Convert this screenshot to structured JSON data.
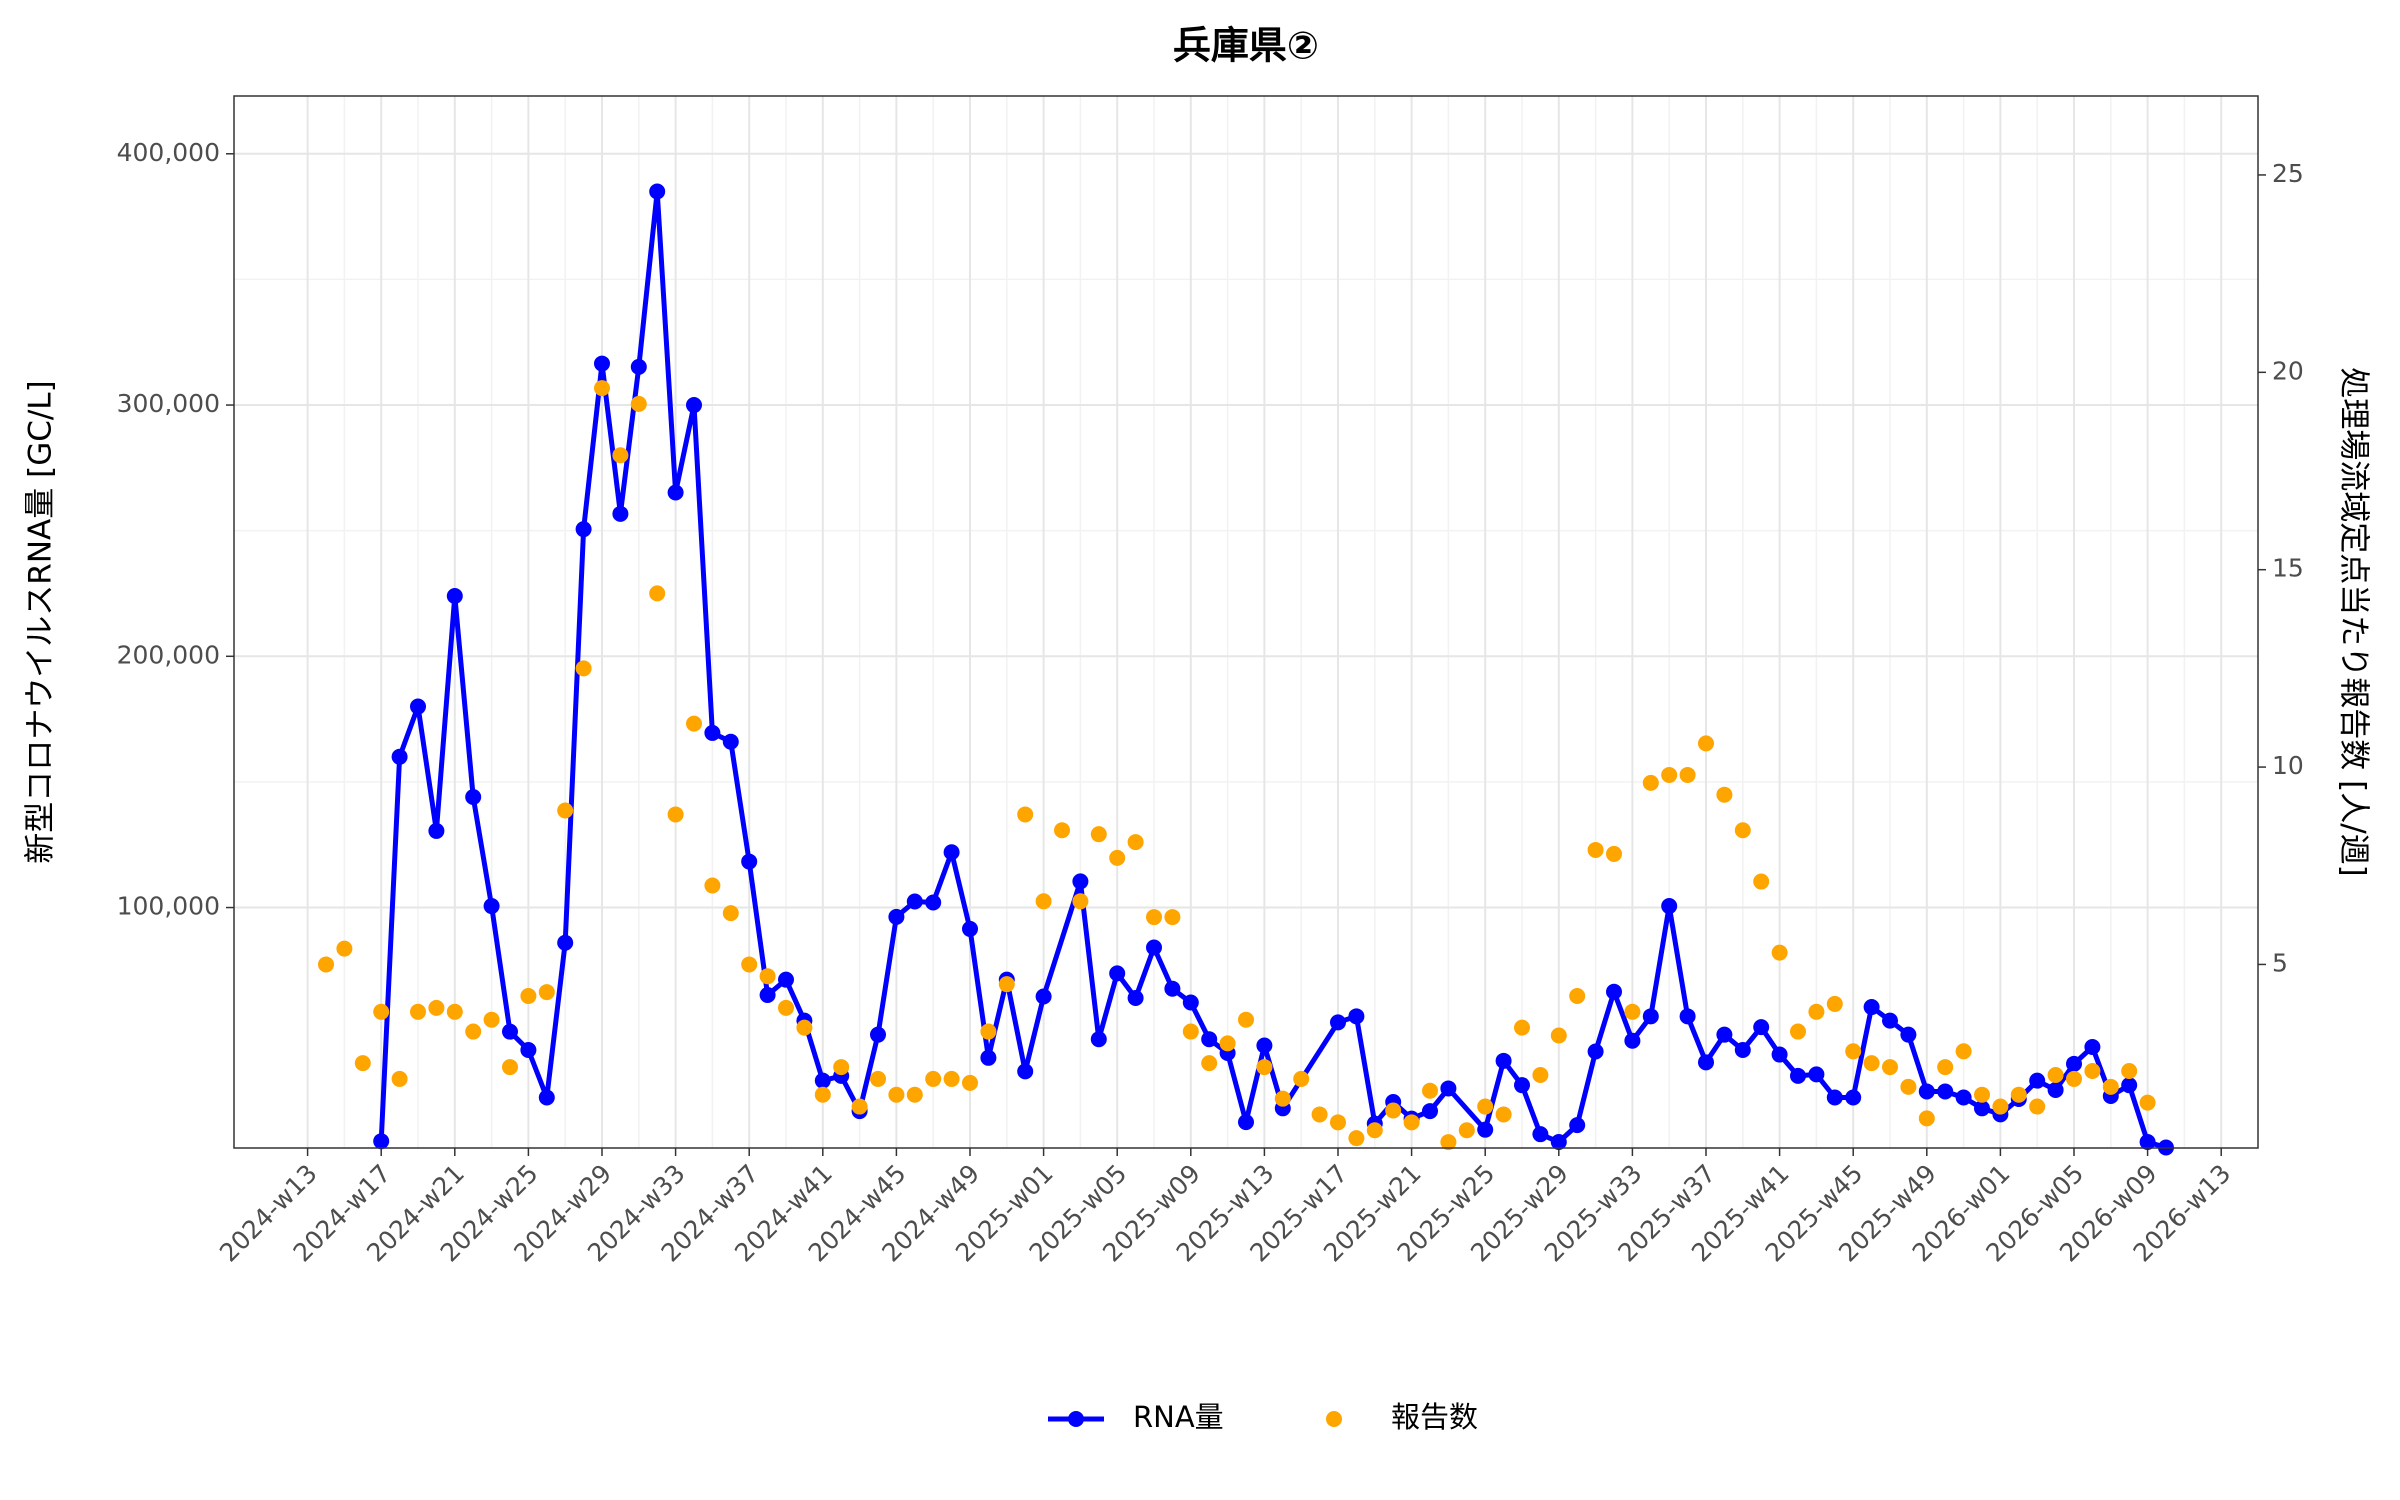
{
  "chart_data": {
    "type": "line",
    "title": "兵庫県②",
    "y_label": "新型コロナウイルスRNA量 [GC/L]",
    "y2_label": "処理場流域定点当たり報告数 [人/週]",
    "xlim": [
      "2024-w09",
      "2026-w15"
    ],
    "xticks": [
      "2024-w13",
      "2024-w17",
      "2024-w21",
      "2024-w25",
      "2024-w29",
      "2024-w33",
      "2024-w37",
      "2024-w41",
      "2024-w45",
      "2024-w49",
      "2025-w01",
      "2025-w05",
      "2025-w09",
      "2025-w13",
      "2025-w17",
      "2025-w21",
      "2025-w25",
      "2025-w29",
      "2025-w33",
      "2025-w37",
      "2025-w41",
      "2025-w45",
      "2025-w49",
      "2026-w01",
      "2026-w05",
      "2026-w09",
      "2026-w13"
    ],
    "ylim": [
      4300,
      423000
    ],
    "yticks": [
      {
        "value": 100000,
        "label": "100,000"
      },
      {
        "value": 200000,
        "label": "200,000"
      },
      {
        "value": 300000,
        "label": "300,000"
      },
      {
        "value": 400000,
        "label": "400,000"
      }
    ],
    "y2lim": [
      0.35,
      27
    ],
    "y2ticks": [
      5,
      10,
      15,
      20,
      25
    ],
    "grid": true,
    "legend_position": "bottom",
    "series": [
      {
        "name": "RNA量",
        "color": "#0000ff",
        "mode": "lines+markers",
        "axis": "y",
        "x": [
          "2024-w17",
          "2024-w18",
          "2024-w19",
          "2024-w20",
          "2024-w21",
          "2024-w22",
          "2024-w23",
          "2024-w24",
          "2024-w25",
          "2024-w26",
          "2024-w27",
          "2024-w28",
          "2024-w29",
          "2024-w30",
          "2024-w31",
          "2024-w32",
          "2024-w33",
          "2024-w34",
          "2024-w35",
          "2024-w36",
          "2024-w37",
          "2024-w38",
          "2024-w39",
          "2024-w40",
          "2024-w41",
          "2024-w42",
          "2024-w43",
          "2024-w44",
          "2024-w45",
          "2024-w46",
          "2024-w47",
          "2024-w48",
          "2024-w49",
          "2024-w50",
          "2024-w51",
          "2024-w52",
          "2025-w01",
          "2025-w03",
          "2025-w04",
          "2025-w05",
          "2025-w06",
          "2025-w07",
          "2025-w08",
          "2025-w09",
          "2025-w10",
          "2025-w11",
          "2025-w12",
          "2025-w13",
          "2025-w14",
          "2025-w17",
          "2025-w18",
          "2025-w19",
          "2025-w20",
          "2025-w21",
          "2025-w22",
          "2025-w23",
          "2025-w25",
          "2025-w26",
          "2025-w27",
          "2025-w28",
          "2025-w29",
          "2025-w30",
          "2025-w31",
          "2025-w32",
          "2025-w33",
          "2025-w34",
          "2025-w35",
          "2025-w36",
          "2025-w37",
          "2025-w38",
          "2025-w39",
          "2025-w40",
          "2025-w41",
          "2025-w42",
          "2025-w43",
          "2025-w44",
          "2025-w45",
          "2025-w46",
          "2025-w47",
          "2025-w48",
          "2025-w49",
          "2025-w50",
          "2025-w51",
          "2025-w52",
          "2026-w01",
          "2026-w02",
          "2026-w03",
          "2026-w04",
          "2026-w05",
          "2026-w06",
          "2026-w07",
          "2026-w08",
          "2026-w09",
          "2026-w10"
        ],
        "values": [
          7000,
          160000,
          180000,
          130500,
          224000,
          144000,
          100600,
          50600,
          43300,
          24400,
          86000,
          250600,
          316500,
          256700,
          315200,
          385000,
          265200,
          300000,
          169500,
          166000,
          118300,
          65200,
          71300,
          55000,
          31100,
          33000,
          19000,
          49400,
          96300,
          102400,
          102000,
          122000,
          91500,
          40200,
          71300,
          34800,
          64600,
          110400,
          47600,
          73800,
          64000,
          84100,
          67700,
          62200,
          47600,
          42100,
          14600,
          45100,
          20100,
          54300,
          56700,
          14000,
          22600,
          16000,
          19000,
          28000,
          11600,
          39000,
          29300,
          9800,
          6700,
          13400,
          42700,
          66500,
          47000,
          56700,
          100600,
          56700,
          38400,
          49400,
          43300,
          52400,
          41500,
          33000,
          33600,
          24400,
          24400,
          60400,
          55000,
          49400,
          26800,
          26800,
          24400,
          20100,
          17700,
          23800,
          31100,
          27400,
          37800,
          44500,
          25000,
          29300,
          6700,
          4500
        ]
      },
      {
        "name": "報告数",
        "color": "#ffa500",
        "mode": "markers",
        "axis": "y2",
        "x": [
          "2024-w14",
          "2024-w15",
          "2024-w16",
          "2024-w17",
          "2024-w18",
          "2024-w19",
          "2024-w20",
          "2024-w21",
          "2024-w22",
          "2024-w23",
          "2024-w24",
          "2024-w25",
          "2024-w26",
          "2024-w27",
          "2024-w28",
          "2024-w29",
          "2024-w30",
          "2024-w31",
          "2024-w32",
          "2024-w33",
          "2024-w34",
          "2024-w35",
          "2024-w36",
          "2024-w37",
          "2024-w38",
          "2024-w39",
          "2024-w40",
          "2024-w41",
          "2024-w42",
          "2024-w43",
          "2024-w44",
          "2024-w45",
          "2024-w46",
          "2024-w47",
          "2024-w48",
          "2024-w49",
          "2024-w50",
          "2024-w51",
          "2024-w52",
          "2025-w01",
          "2025-w02",
          "2025-w03",
          "2025-w04",
          "2025-w05",
          "2025-w06",
          "2025-w07",
          "2025-w08",
          "2025-w09",
          "2025-w10",
          "2025-w11",
          "2025-w12",
          "2025-w13",
          "2025-w14",
          "2025-w15",
          "2025-w16",
          "2025-w17",
          "2025-w18",
          "2025-w19",
          "2025-w20",
          "2025-w21",
          "2025-w22",
          "2025-w23",
          "2025-w24",
          "2025-w25",
          "2025-w26",
          "2025-w27",
          "2025-w28",
          "2025-w29",
          "2025-w30",
          "2025-w31",
          "2025-w32",
          "2025-w33",
          "2025-w34",
          "2025-w35",
          "2025-w36",
          "2025-w37",
          "2025-w38",
          "2025-w39",
          "2025-w40",
          "2025-w41",
          "2025-w42",
          "2025-w43",
          "2025-w44",
          "2025-w45",
          "2025-w46",
          "2025-w47",
          "2025-w48",
          "2025-w49",
          "2025-w50",
          "2025-w51",
          "2025-w52",
          "2026-w01",
          "2026-w02",
          "2026-w03",
          "2026-w04",
          "2026-w05",
          "2026-w06",
          "2026-w07",
          "2026-w08",
          "2026-w09"
        ],
        "values": [
          5.0,
          5.4,
          2.5,
          3.8,
          2.1,
          3.8,
          3.9,
          3.8,
          3.3,
          3.6,
          2.4,
          4.2,
          4.3,
          8.9,
          12.5,
          19.6,
          17.9,
          19.2,
          14.4,
          8.8,
          11.1,
          7.0,
          6.3,
          5.0,
          4.7,
          3.9,
          3.4,
          1.7,
          2.4,
          1.4,
          2.1,
          1.7,
          1.7,
          2.1,
          2.1,
          2.0,
          3.3,
          4.5,
          8.8,
          6.6,
          8.4,
          6.6,
          8.3,
          7.7,
          8.1,
          6.2,
          6.2,
          3.3,
          2.5,
          3.0,
          3.6,
          2.4,
          1.6,
          2.1,
          1.2,
          1.0,
          0.6,
          0.8,
          1.3,
          1.0,
          1.8,
          0.5,
          0.8,
          1.4,
          1.2,
          3.4,
          2.2,
          3.2,
          4.2,
          7.9,
          7.8,
          3.8,
          9.6,
          9.8,
          9.8,
          10.6,
          9.3,
          8.4,
          7.1,
          5.3,
          3.3,
          3.8,
          4.0,
          2.8,
          2.5,
          2.4,
          1.9,
          1.1,
          2.4,
          2.8,
          1.7,
          1.4,
          1.7,
          1.4,
          2.2,
          2.1,
          2.3,
          1.9,
          2.3,
          1.5
        ]
      }
    ]
  }
}
